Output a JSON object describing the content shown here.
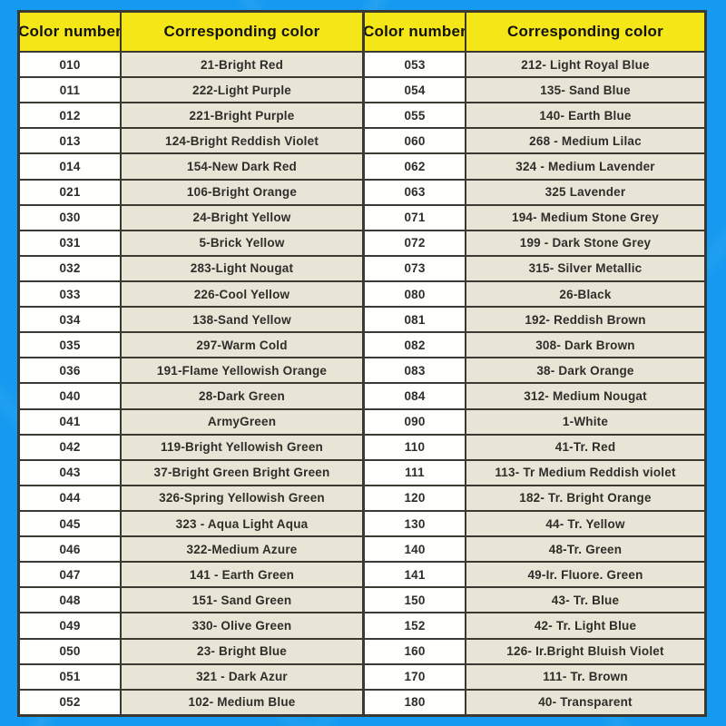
{
  "colors": {
    "background": "#149af0",
    "header_bg": "#f5e617",
    "number_cell_bg": "#fefefc",
    "color_cell_bg": "#e9e5d6",
    "border": "#3a3a33",
    "text": "#2d2d2a"
  },
  "tables": [
    {
      "headers": [
        "Color number",
        "Corresponding color"
      ],
      "rows": [
        [
          "010",
          "21-Bright Red"
        ],
        [
          "011",
          "222-Light Purple"
        ],
        [
          "012",
          "221-Bright Purple"
        ],
        [
          "013",
          "124-Bright Reddish Violet"
        ],
        [
          "014",
          "154-New Dark Red"
        ],
        [
          "021",
          "106-Bright Orange"
        ],
        [
          "030",
          "24-Bright Yellow"
        ],
        [
          "031",
          "5-Brick Yellow"
        ],
        [
          "032",
          "283-Light Nougat"
        ],
        [
          "033",
          "226-Cool Yellow"
        ],
        [
          "034",
          "138-Sand Yellow"
        ],
        [
          "035",
          "297-Warm Cold"
        ],
        [
          "036",
          "191-Flame Yellowish Orange"
        ],
        [
          "040",
          "28-Dark Green"
        ],
        [
          "041",
          "ArmyGreen"
        ],
        [
          "042",
          "119-Bright Yellowish Green"
        ],
        [
          "043",
          "37-Bright Green Bright Green"
        ],
        [
          "044",
          "326-Spring Yellowish Green"
        ],
        [
          "045",
          "323 - Aqua Light Aqua"
        ],
        [
          "046",
          "322-Medium Azure"
        ],
        [
          "047",
          "141 - Earth Green"
        ],
        [
          "048",
          "151- Sand Green"
        ],
        [
          "049",
          "330- Olive Green"
        ],
        [
          "050",
          "23- Bright Blue"
        ],
        [
          "051",
          "321 - Dark Azur"
        ],
        [
          "052",
          "102- Medium Blue"
        ]
      ]
    },
    {
      "headers": [
        "Color number",
        "Corresponding color"
      ],
      "rows": [
        [
          "053",
          "212- Light Royal Blue"
        ],
        [
          "054",
          "135- Sand Blue"
        ],
        [
          "055",
          "140- Earth Blue"
        ],
        [
          "060",
          "268 - Medium Lilac"
        ],
        [
          "062",
          "324 - Medium Lavender"
        ],
        [
          "063",
          "325 Lavender"
        ],
        [
          "071",
          "194- Medium Stone Grey"
        ],
        [
          "072",
          "199 - Dark Stone Grey"
        ],
        [
          "073",
          "315- Silver Metallic"
        ],
        [
          "080",
          "26-Black"
        ],
        [
          "081",
          "192- Reddish Brown"
        ],
        [
          "082",
          "308- Dark Brown"
        ],
        [
          "083",
          "38- Dark Orange"
        ],
        [
          "084",
          "312- Medium Nougat"
        ],
        [
          "090",
          "1-White"
        ],
        [
          "110",
          "41-Tr. Red"
        ],
        [
          "111",
          "113- Tr Medium Reddish violet"
        ],
        [
          "120",
          "182- Tr. Bright Orange"
        ],
        [
          "130",
          "44- Tr. Yellow"
        ],
        [
          "140",
          "48-Tr. Green"
        ],
        [
          "141",
          "49-Ir. Fluore. Green"
        ],
        [
          "150",
          "43- Tr. Blue"
        ],
        [
          "152",
          "42- Tr. Light Blue"
        ],
        [
          "160",
          "126- Ir.Bright Bluish Violet"
        ],
        [
          "170",
          "111- Tr. Brown"
        ],
        [
          "180",
          "40- Transparent"
        ]
      ]
    }
  ]
}
